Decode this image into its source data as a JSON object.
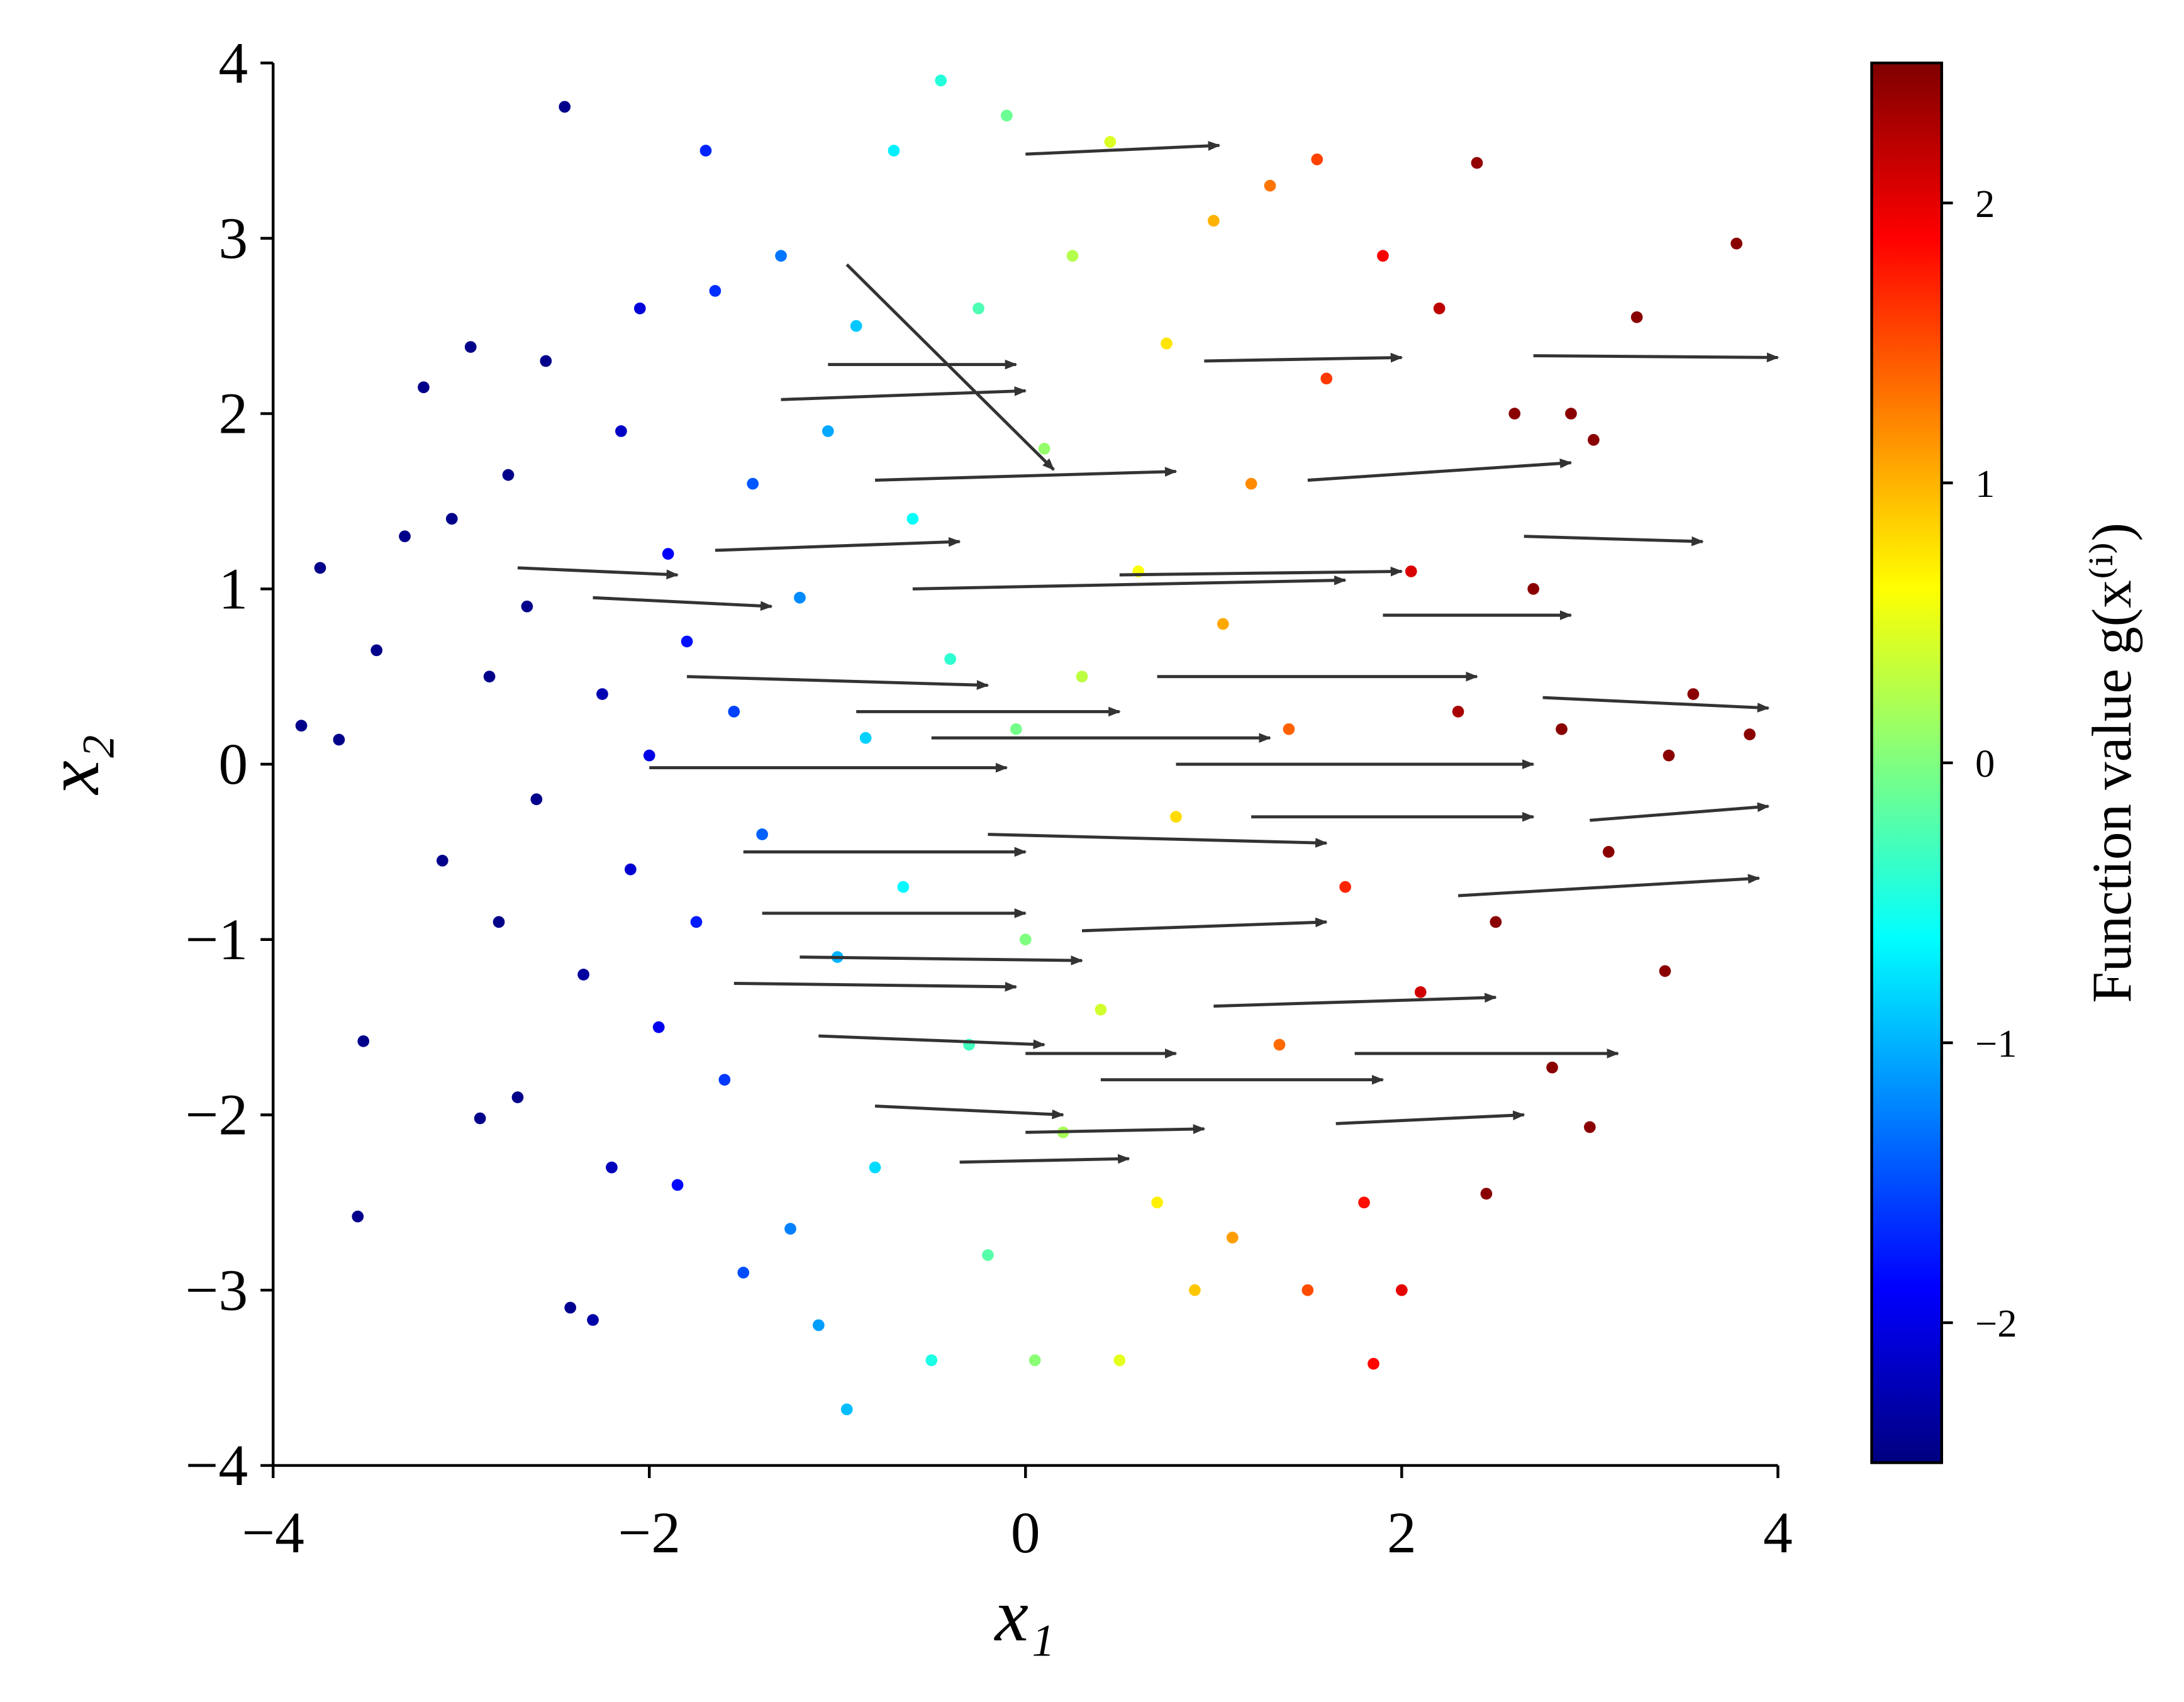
{
  "chart_data": {
    "type": "scatter",
    "xlabel": "x₁",
    "ylabel": "x₂",
    "xlim": [
      -4,
      4
    ],
    "ylim": [
      -4,
      4
    ],
    "xticks": [
      {
        "value": -4,
        "label": "−4"
      },
      {
        "value": -2,
        "label": "−2"
      },
      0,
      2,
      4
    ],
    "yticks": [
      {
        "value": -4,
        "label": "−4"
      },
      {
        "value": -3,
        "label": "−3"
      },
      {
        "value": -2,
        "label": "−2"
      },
      {
        "value": -1,
        "label": "−1"
      },
      0,
      1,
      2,
      3,
      4
    ],
    "points": {
      "x": [
        -3.85,
        -3.75,
        -3.65,
        -3.55,
        -3.52,
        -3.45,
        -3.3,
        -3.2,
        -3.1,
        -3.05,
        -2.95,
        -2.9,
        -2.85,
        -2.8,
        -2.75,
        -2.7,
        -2.65,
        -2.6,
        -2.55,
        -2.45,
        -2.42,
        -2.35,
        -2.3,
        -2.25,
        -2.2,
        -2.15,
        -2.1,
        -2.05,
        -2.0,
        -1.95,
        -1.9,
        -1.85,
        -1.8,
        -1.75,
        -1.7,
        -1.65,
        -1.6,
        -1.55,
        -1.5,
        -1.45,
        -1.4,
        -1.3,
        -1.25,
        -1.2,
        -1.1,
        -1.05,
        -1.0,
        -0.95,
        -0.9,
        -0.85,
        -0.8,
        -0.7,
        -0.65,
        -0.6,
        -0.5,
        -0.45,
        -0.4,
        -0.3,
        -0.25,
        -0.2,
        -0.1,
        -0.05,
        0.0,
        0.05,
        0.1,
        0.2,
        0.25,
        0.3,
        0.4,
        0.45,
        0.5,
        0.6,
        0.7,
        0.75,
        0.8,
        0.9,
        1.0,
        1.05,
        1.1,
        1.2,
        1.3,
        1.35,
        1.4,
        1.5,
        1.55,
        1.6,
        1.7,
        1.8,
        1.85,
        1.9,
        2.0,
        2.05,
        2.1,
        2.2,
        2.3,
        2.4,
        2.45,
        2.5,
        2.6,
        2.7,
        2.8,
        2.85,
        2.9,
        3.0,
        3.02,
        3.1,
        3.25,
        3.4,
        3.42,
        3.55,
        3.78,
        3.85
      ],
      "y": [
        0.22,
        1.12,
        0.14,
        -2.58,
        -1.58,
        0.65,
        1.3,
        2.15,
        -0.55,
        1.4,
        2.38,
        -2.02,
        0.5,
        -0.9,
        1.65,
        -1.9,
        0.9,
        -0.2,
        2.3,
        3.75,
        -3.1,
        -1.2,
        -3.17,
        0.4,
        -2.3,
        1.9,
        -0.6,
        2.6,
        0.05,
        -1.5,
        1.2,
        -2.4,
        0.7,
        -0.9,
        3.5,
        2.7,
        -1.8,
        0.3,
        -2.9,
        1.6,
        -0.4,
        2.9,
        -2.65,
        0.95,
        -3.2,
        1.9,
        -1.1,
        -3.68,
        2.5,
        0.15,
        -2.3,
        3.5,
        -0.7,
        1.4,
        -3.4,
        3.9,
        0.6,
        -1.6,
        2.6,
        -2.8,
        3.7,
        0.2,
        -1.0,
        -3.4,
        1.8,
        -2.1,
        2.9,
        0.5,
        -1.4,
        3.55,
        -3.4,
        1.1,
        -2.5,
        2.4,
        -0.3,
        -3.0,
        3.1,
        0.8,
        -2.7,
        1.6,
        3.3,
        -1.6,
        0.2,
        -3.0,
        3.45,
        2.2,
        -0.7,
        -2.5,
        -3.42,
        2.9,
        -3.0,
        1.1,
        -1.3,
        2.6,
        0.3,
        3.43,
        -2.45,
        -0.9,
        2.0,
        1.0,
        -1.73,
        0.2,
        2.0,
        -2.07,
        1.85,
        -0.5,
        2.55,
        -1.18,
        0.05,
        0.4,
        2.97,
        0.17
      ],
      "values": [
        -2.45,
        -2.45,
        -2.45,
        -2.45,
        -2.45,
        -2.45,
        -2.45,
        -2.45,
        -2.45,
        -2.45,
        -2.45,
        -2.45,
        -2.45,
        -2.45,
        -2.45,
        -2.45,
        -2.45,
        -2.45,
        -2.45,
        -2.45,
        -2.42,
        -2.35,
        -2.3,
        -2.25,
        -2.2,
        -2.15,
        -2.1,
        -2.05,
        -2.0,
        -1.95,
        -1.9,
        -1.85,
        -1.8,
        -1.75,
        -1.7,
        -1.65,
        -1.6,
        -1.55,
        -1.5,
        -1.45,
        -1.4,
        -1.3,
        -1.25,
        -1.2,
        -1.1,
        -1.05,
        -1.0,
        -0.95,
        -0.9,
        -0.85,
        -0.8,
        -0.7,
        -0.65,
        -0.6,
        -0.5,
        -0.45,
        -0.4,
        -0.3,
        -0.25,
        -0.2,
        -0.1,
        -0.05,
        0.0,
        0.05,
        0.1,
        0.2,
        0.25,
        0.3,
        0.4,
        0.45,
        0.5,
        0.6,
        0.7,
        0.75,
        0.8,
        0.9,
        1.0,
        1.05,
        1.1,
        1.2,
        1.3,
        1.35,
        1.4,
        1.5,
        1.55,
        1.6,
        1.7,
        1.8,
        1.85,
        1.9,
        2.0,
        2.05,
        2.1,
        2.2,
        2.3,
        2.4,
        2.45,
        2.45,
        2.45,
        2.45,
        2.45,
        2.45,
        2.45,
        2.45,
        2.45,
        2.45,
        2.45,
        2.45,
        2.45,
        2.45,
        2.45,
        2.45
      ]
    },
    "quiver": {
      "color": "#333333",
      "x": [
        0,
        -0.95,
        2.7,
        -2.7,
        -2.3,
        2.75,
        3.0,
        2.3,
        2.65,
        1.65,
        -0.35,
        -1.3,
        -1.05,
        0.95,
        1.5,
        -0.8,
        -1.65,
        -0.6,
        0.5,
        -1.8,
        -2.0,
        -0.5,
        0.7,
        -1.5,
        -0.2,
        1.2,
        -1.4,
        0.3,
        -1.2,
        -1.55,
        1.0,
        -1.1,
        0.0,
        -0.8,
        0.0,
        1.75,
        0.4,
        -0.9,
        1.9,
        0.8
      ],
      "y": [
        3.48,
        2.85,
        2.33,
        1.12,
        0.95,
        0.38,
        -0.32,
        -0.75,
        1.3,
        -2.05,
        -2.27,
        2.08,
        2.28,
        2.3,
        1.62,
        1.62,
        1.22,
        1.0,
        1.08,
        0.5,
        -0.02,
        0.15,
        0.5,
        -0.5,
        -0.4,
        -0.3,
        -0.85,
        -0.95,
        -1.1,
        -1.25,
        -1.38,
        -1.55,
        -1.65,
        -1.95,
        -2.1,
        -1.65,
        -1.8,
        0.3,
        0.85,
        0.0
      ],
      "u": [
        1.03,
        1.1,
        1.3,
        0.85,
        0.95,
        1.2,
        0.95,
        1.6,
        0.95,
        1.0,
        0.9,
        1.3,
        1.0,
        1.05,
        1.4,
        1.6,
        1.3,
        2.3,
        1.5,
        1.6,
        1.9,
        1.8,
        1.7,
        1.5,
        1.8,
        1.5,
        1.4,
        1.3,
        1.5,
        1.5,
        1.5,
        1.2,
        0.8,
        1.0,
        0.95,
        1.4,
        1.5,
        1.4,
        1.0,
        1.9
      ],
      "v": [
        0.05,
        -1.17,
        -0.01,
        -0.04,
        -0.05,
        -0.06,
        0.08,
        0.1,
        -0.03,
        0.05,
        0.02,
        0.05,
        0.0,
        0.02,
        0.1,
        0.05,
        0.05,
        0.05,
        0.02,
        -0.05,
        0.0,
        0.0,
        0.0,
        0.0,
        -0.05,
        0.0,
        0.0,
        0.05,
        -0.02,
        -0.02,
        0.05,
        -0.05,
        0.0,
        -0.05,
        0.02,
        0.0,
        0.0,
        0.0,
        0.0,
        0.0
      ]
    },
    "colorbar": {
      "label": "Function value g(x⁽ⁱ⁾)",
      "cmap": "jet",
      "lim": [
        -2.5,
        2.5
      ],
      "ticks": [
        {
          "value": -2,
          "label": "−2"
        },
        {
          "value": -1,
          "label": "−1"
        },
        0,
        1,
        2
      ]
    }
  }
}
